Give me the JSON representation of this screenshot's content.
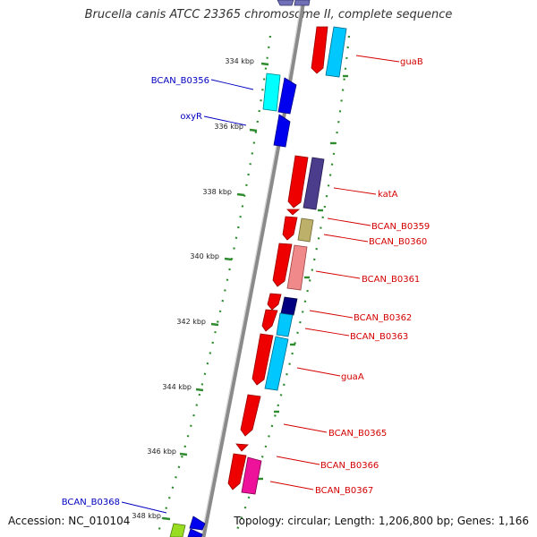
{
  "title": "Brucella canis ATCC 23365 chromosome II, complete sequence",
  "footer": {
    "accession": "Accession: NC_010104",
    "topology": "Topology: circular; Length: 1,206,800 bp; Genes: 1,166"
  },
  "colors": {
    "backbone": "#8a8a8a",
    "tick": "#2e8b2e",
    "label_right": "#d40000",
    "label_left": "#0000c0"
  },
  "kbp_ticks": [
    "334 kbp",
    "336 kbp",
    "338 kbp",
    "340 kbp",
    "342 kbp",
    "344 kbp",
    "346 kbp",
    "348 kbp"
  ],
  "genes_right": [
    {
      "name": "guaB"
    },
    {
      "name": "katA"
    },
    {
      "name": "BCAN_B0359"
    },
    {
      "name": "BCAN_B0360"
    },
    {
      "name": "BCAN_B0361"
    },
    {
      "name": "BCAN_B0362"
    },
    {
      "name": "BCAN_B0363"
    },
    {
      "name": "guaA"
    },
    {
      "name": "BCAN_B0365"
    },
    {
      "name": "BCAN_B0366"
    },
    {
      "name": "BCAN_B0367"
    }
  ],
  "genes_left": [
    {
      "name": "BCAN_B0356"
    },
    {
      "name": "oxyR"
    },
    {
      "name": "BCAN_B0368"
    }
  ]
}
